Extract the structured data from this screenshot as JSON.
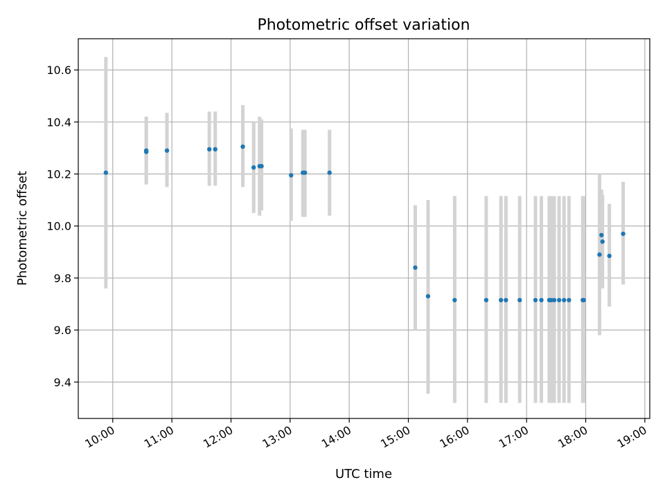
{
  "chart_data": {
    "type": "scatter",
    "title": "Photometric offset variation",
    "xlabel": "UTC time",
    "ylabel": "Photometric offset",
    "xlim": [
      "09:25",
      "19:05"
    ],
    "ylim": [
      9.26,
      10.72
    ],
    "x_ticks": [
      "10:00",
      "11:00",
      "12:00",
      "13:00",
      "14:00",
      "15:00",
      "16:00",
      "17:00",
      "18:00",
      "19:00"
    ],
    "y_ticks": [
      "9.4",
      "9.6",
      "9.8",
      "10.0",
      "10.2",
      "10.4",
      "10.6"
    ],
    "grid": true,
    "colors": {
      "point": "#1f77b4",
      "errorbar": "#d3d3d3",
      "grid": "#b0b0b0"
    },
    "points": [
      {
        "t": "09:53",
        "y": 10.205,
        "lo": 9.76,
        "hi": 10.65
      },
      {
        "t": "10:34",
        "y": 10.285,
        "lo": 10.16,
        "hi": 10.42
      },
      {
        "t": "10:34",
        "y": 10.29,
        "lo": 10.16,
        "hi": 10.42
      },
      {
        "t": "10:55",
        "y": 10.29,
        "lo": 10.15,
        "hi": 10.435
      },
      {
        "t": "11:38",
        "y": 10.295,
        "lo": 10.155,
        "hi": 10.44
      },
      {
        "t": "11:44",
        "y": 10.295,
        "lo": 10.155,
        "hi": 10.44
      },
      {
        "t": "12:12",
        "y": 10.305,
        "lo": 10.15,
        "hi": 10.465
      },
      {
        "t": "12:23",
        "y": 10.225,
        "lo": 10.05,
        "hi": 10.4
      },
      {
        "t": "12:29",
        "y": 10.23,
        "lo": 10.04,
        "hi": 10.42
      },
      {
        "t": "12:31",
        "y": 10.23,
        "lo": 10.06,
        "hi": 10.41
      },
      {
        "t": "13:01",
        "y": 10.195,
        "lo": 10.02,
        "hi": 10.375
      },
      {
        "t": "13:13",
        "y": 10.205,
        "lo": 10.035,
        "hi": 10.37
      },
      {
        "t": "13:15",
        "y": 10.205,
        "lo": 10.035,
        "hi": 10.37
      },
      {
        "t": "13:40",
        "y": 10.205,
        "lo": 10.04,
        "hi": 10.37
      },
      {
        "t": "15:07",
        "y": 9.84,
        "lo": 9.6,
        "hi": 10.08
      },
      {
        "t": "15:20",
        "y": 9.73,
        "lo": 9.355,
        "hi": 10.1
      },
      {
        "t": "15:47",
        "y": 9.715,
        "lo": 9.32,
        "hi": 10.115
      },
      {
        "t": "16:19",
        "y": 9.715,
        "lo": 9.32,
        "hi": 10.115
      },
      {
        "t": "16:34",
        "y": 9.715,
        "lo": 9.32,
        "hi": 10.115
      },
      {
        "t": "16:39",
        "y": 9.715,
        "lo": 9.32,
        "hi": 10.115
      },
      {
        "t": "16:53",
        "y": 9.715,
        "lo": 9.32,
        "hi": 10.115
      },
      {
        "t": "17:09",
        "y": 9.715,
        "lo": 9.32,
        "hi": 10.115
      },
      {
        "t": "17:15",
        "y": 9.715,
        "lo": 9.32,
        "hi": 10.115
      },
      {
        "t": "17:23",
        "y": 9.715,
        "lo": 9.32,
        "hi": 10.115
      },
      {
        "t": "17:25",
        "y": 9.715,
        "lo": 9.32,
        "hi": 10.115
      },
      {
        "t": "17:28",
        "y": 9.715,
        "lo": 9.32,
        "hi": 10.115
      },
      {
        "t": "17:33",
        "y": 9.715,
        "lo": 9.32,
        "hi": 10.115
      },
      {
        "t": "17:38",
        "y": 9.715,
        "lo": 9.32,
        "hi": 10.115
      },
      {
        "t": "17:43",
        "y": 9.715,
        "lo": 9.32,
        "hi": 10.115
      },
      {
        "t": "17:57",
        "y": 9.715,
        "lo": 9.32,
        "hi": 10.115
      },
      {
        "t": "17:58",
        "y": 9.715,
        "lo": 9.32,
        "hi": 10.115
      },
      {
        "t": "18:14",
        "y": 9.89,
        "lo": 9.58,
        "hi": 10.2
      },
      {
        "t": "18:16",
        "y": 9.965,
        "lo": 9.79,
        "hi": 10.14
      },
      {
        "t": "18:17",
        "y": 9.94,
        "lo": 9.76,
        "hi": 10.12
      },
      {
        "t": "18:24",
        "y": 9.885,
        "lo": 9.69,
        "hi": 10.085
      },
      {
        "t": "18:38",
        "y": 9.97,
        "lo": 9.775,
        "hi": 10.17
      }
    ]
  }
}
